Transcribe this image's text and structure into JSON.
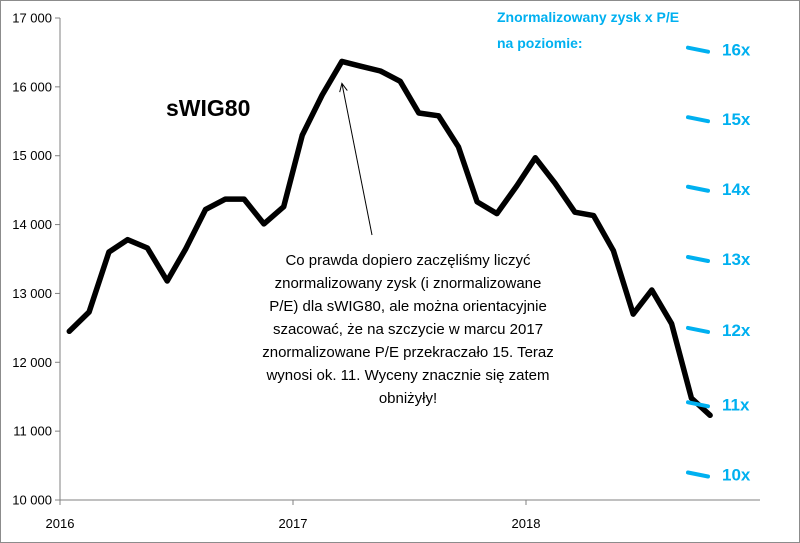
{
  "chart_data": {
    "type": "line",
    "series_title": "sWIG80",
    "ylim": [
      10000,
      17000
    ],
    "y_ticks": [
      {
        "value": 10000,
        "label": "10 000"
      },
      {
        "value": 11000,
        "label": "11 000"
      },
      {
        "value": 12000,
        "label": "12 000"
      },
      {
        "value": 13000,
        "label": "13 000"
      },
      {
        "value": 14000,
        "label": "14 000"
      },
      {
        "value": 15000,
        "label": "15 000"
      },
      {
        "value": 16000,
        "label": "16 000"
      },
      {
        "value": 17000,
        "label": "17 000"
      }
    ],
    "x_ticks": [
      {
        "value": 2016.0,
        "label": "2016"
      },
      {
        "value": 2017.0,
        "label": "2017"
      },
      {
        "value": 2018.0,
        "label": "2018"
      }
    ],
    "xlim": [
      2016.0,
      2019.0
    ],
    "series": [
      {
        "x": [
          2016.04,
          2016.125,
          2016.21,
          2016.29,
          2016.375,
          2016.46,
          2016.54,
          2016.625,
          2016.71,
          2016.79,
          2016.875,
          2016.96,
          2017.04,
          2017.125,
          2017.21,
          2017.29,
          2017.375,
          2017.46,
          2017.54,
          2017.625,
          2017.71,
          2017.79,
          2017.875,
          2017.96,
          2018.04,
          2018.125,
          2018.21,
          2018.29,
          2018.375,
          2018.46,
          2018.54,
          2018.625,
          2018.71,
          2018.79
        ],
        "values": [
          12450,
          12730,
          13600,
          13780,
          13660,
          13180,
          13650,
          14220,
          14370,
          14370,
          14010,
          14260,
          15300,
          15880,
          16370,
          16300,
          16230,
          16080,
          15620,
          15580,
          15130,
          14330,
          14160,
          14560,
          14970,
          14600,
          14180,
          14130,
          13620,
          12700,
          13050,
          12560,
          11480,
          11230
        ]
      }
    ],
    "right_axis": {
      "title": "Znormalizowany zysk x P/E na poziomie:",
      "color": "#00B0F0",
      "levels": [
        {
          "label": "16x",
          "value": 16540
        },
        {
          "label": "15x",
          "value": 15530
        },
        {
          "label": "14x",
          "value": 14520
        },
        {
          "label": "13x",
          "value": 13500
        },
        {
          "label": "12x",
          "value": 12470
        },
        {
          "label": "11x",
          "value": 11390
        },
        {
          "label": "10x",
          "value": 10370
        }
      ]
    },
    "annotation": {
      "text": "Co prawda dopiero zaczęliśmy liczyć znormalizowany zysk (i znormalizowane P/E) dla sWIG80, ale można orientacyjnie szacować, że na szczycie w marcu 2017 znormalizowane P/E przekraczało 15. Teraz wynosi ok. 11. Wyceny znacznie się zatem obniżyły!",
      "points_to": {
        "x": 2017.21,
        "value": 16370
      }
    }
  }
}
